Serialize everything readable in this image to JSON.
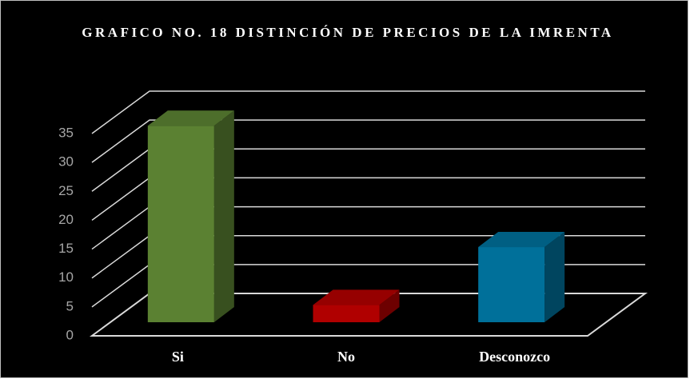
{
  "chart_data": {
    "type": "bar3d",
    "title": "GRAFICO NO. 18 DISTINCIÓN DE PRECIOS DE LA IMRENTA",
    "categories": [
      "Si",
      "No",
      "Desconozco"
    ],
    "values": [
      34,
      3,
      13
    ],
    "colors": [
      "#5b8132",
      "#b00000",
      "#00709a"
    ],
    "ylim": [
      0,
      35
    ],
    "yticks": [
      0,
      5,
      10,
      15,
      20,
      25,
      30,
      35
    ],
    "grid": true
  }
}
